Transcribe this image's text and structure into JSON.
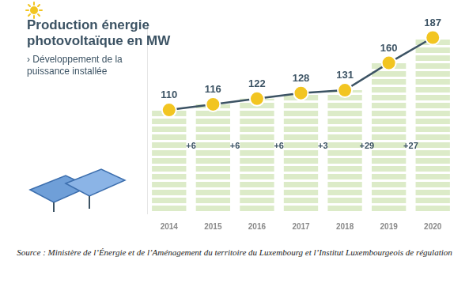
{
  "chart_data": {
    "type": "bar",
    "title": "Production énergie photovoltaïque en MW",
    "subtitle": "› Développement de la puissance installée",
    "categories": [
      "2014",
      "2015",
      "2016",
      "2017",
      "2018",
      "2019",
      "2020"
    ],
    "series": [
      {
        "type": "bar",
        "color": "#dcebc8",
        "values": [
          110,
          116,
          122,
          128,
          131,
          160,
          187
        ]
      },
      {
        "type": "line",
        "color": "#3c5364",
        "marker": "circle",
        "values": [
          110,
          116,
          122,
          128,
          131,
          160,
          187
        ]
      }
    ],
    "increments": {
      "values": [
        6,
        6,
        6,
        3,
        29,
        27
      ],
      "value_labels": [
        "+6",
        "+6",
        "+6",
        "+3",
        "+29",
        "+27"
      ]
    },
    "ylim": [
      0,
      200
    ],
    "grid": false,
    "data_labels": true,
    "tick_labels": "x",
    "source": "Source : Ministère de l’Énergie et de l’Aménagement du territoire du Luxembourg et l’Institut Luxembourgeois de régulation"
  }
}
